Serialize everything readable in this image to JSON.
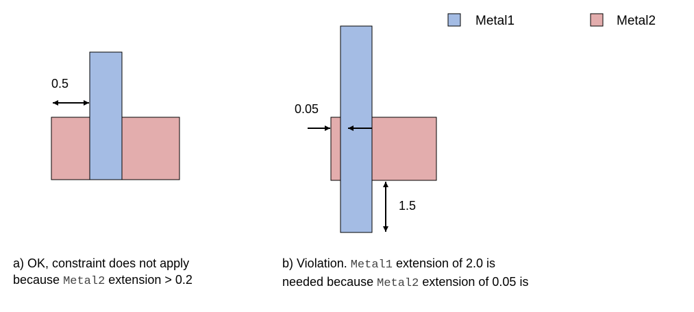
{
  "colors": {
    "metal1": "#a4bce4",
    "metal2": "#e3adad",
    "stroke": "#000000"
  },
  "legend": {
    "metal1": "Metal1",
    "metal2": "Metal2"
  },
  "diagram_a": {
    "dim_label": "0.5",
    "caption": {
      "line1": "a) OK, constraint does not apply",
      "line2_pre": "because ",
      "line2_code": "Metal2",
      "line2_post": " extension > 0.2"
    }
  },
  "diagram_b": {
    "dim_label_side": "0.05",
    "dim_label_bottom": "1.5",
    "caption": {
      "line1_pre": "b) Violation. ",
      "line1_code": "Metal1",
      "line1_post": " extension of 2.0 is",
      "line2_pre": "needed because ",
      "line2_code": "Metal2",
      "line2_post": " extension of 0.05 is"
    }
  }
}
